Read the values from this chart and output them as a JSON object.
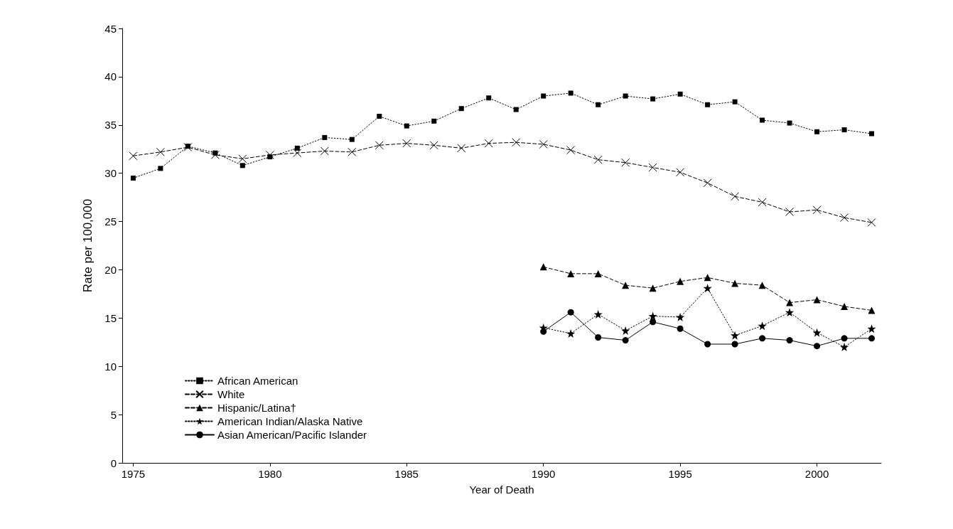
{
  "chart_data": {
    "type": "line",
    "xlabel": "Year of Death",
    "ylabel": "Rate per 100,000",
    "x": [
      1975,
      1976,
      1977,
      1978,
      1979,
      1980,
      1981,
      1982,
      1983,
      1984,
      1985,
      1986,
      1987,
      1988,
      1989,
      1990,
      1991,
      1992,
      1993,
      1994,
      1995,
      1996,
      1997,
      1998,
      1999,
      2000,
      2001,
      2002
    ],
    "series": [
      {
        "name": "African American",
        "color": "#000000",
        "marker": "square",
        "line_style": "dotted",
        "values": [
          29.5,
          30.5,
          32.8,
          32.1,
          30.8,
          31.7,
          32.6,
          33.7,
          33.5,
          35.9,
          34.9,
          35.4,
          36.7,
          37.8,
          36.6,
          38.0,
          38.3,
          37.1,
          38.0,
          37.7,
          38.2,
          37.1,
          37.4,
          35.5,
          35.2,
          34.3,
          34.5,
          34.1
        ]
      },
      {
        "name": "White",
        "color": "#000000",
        "marker": "cross",
        "line_style": "dashed",
        "values": [
          31.8,
          32.2,
          32.7,
          31.9,
          31.5,
          31.9,
          32.1,
          32.3,
          32.2,
          32.9,
          33.1,
          32.9,
          32.6,
          33.1,
          33.2,
          33.0,
          32.4,
          31.4,
          31.1,
          30.6,
          30.1,
          29.0,
          27.6,
          27.0,
          26.0,
          26.2,
          25.4,
          24.9
        ]
      },
      {
        "name": "Hispanic/Latina†",
        "color": "#000000",
        "marker": "triangle",
        "line_style": "dashed",
        "x": [
          1990,
          1991,
          1992,
          1993,
          1994,
          1995,
          1996,
          1997,
          1998,
          1999,
          2000,
          2001,
          2002
        ],
        "values": [
          20.3,
          19.6,
          19.6,
          18.4,
          18.1,
          18.8,
          19.2,
          18.6,
          18.4,
          16.6,
          16.9,
          16.2,
          15.8
        ]
      },
      {
        "name": "American Indian/Alaska Native",
        "color": "#000000",
        "marker": "star",
        "line_style": "dotted",
        "x": [
          1990,
          1991,
          1992,
          1993,
          1994,
          1995,
          1996,
          1997,
          1998,
          1999,
          2000,
          2001,
          2002
        ],
        "values": [
          14.0,
          13.4,
          15.4,
          13.7,
          15.2,
          15.1,
          18.1,
          13.2,
          14.2,
          15.6,
          13.5,
          12.0,
          13.9
        ]
      },
      {
        "name": "Asian American/Pacific Islander",
        "color": "#000000",
        "marker": "circle",
        "line_style": "solid",
        "x": [
          1990,
          1991,
          1992,
          1993,
          1994,
          1995,
          1996,
          1997,
          1998,
          1999,
          2000,
          2001,
          2002
        ],
        "values": [
          13.6,
          15.6,
          13.0,
          12.7,
          14.6,
          13.9,
          12.3,
          12.3,
          12.9,
          12.7,
          12.1,
          12.9,
          12.9
        ]
      }
    ],
    "xlim": [
      1974.6,
      2002.35
    ],
    "xticks": [
      1975,
      1980,
      1985,
      1990,
      1995,
      2000
    ],
    "ylim": [
      0,
      45
    ],
    "yticks": [
      0,
      5,
      10,
      15,
      20,
      25,
      30,
      35,
      40,
      45
    ],
    "grid": false,
    "legend": "bottom left"
  }
}
